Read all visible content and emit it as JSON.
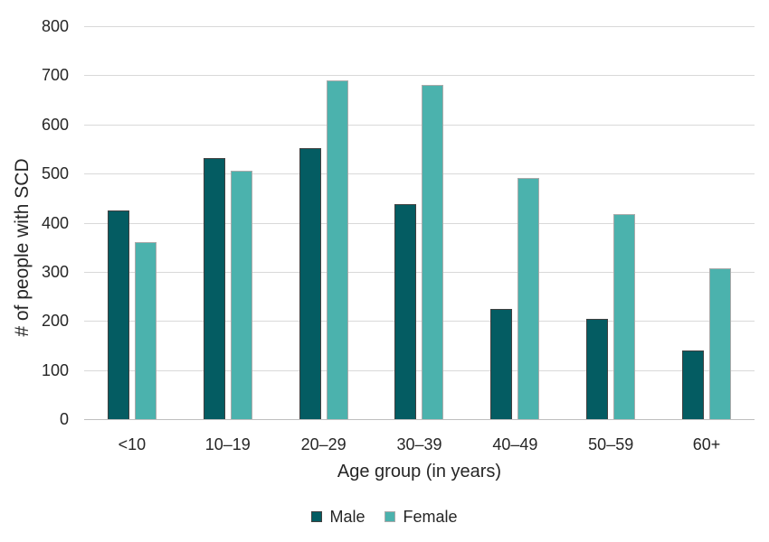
{
  "chart_data": {
    "type": "bar",
    "categories": [
      "<10",
      "10–19",
      "20–29",
      "30–39",
      "40–49",
      "50–59",
      "60+"
    ],
    "series": [
      {
        "name": "Male",
        "color": "#045c62",
        "border_color": "#404040",
        "values": [
          425,
          532,
          552,
          438,
          225,
          204,
          139
        ]
      },
      {
        "name": "Female",
        "color": "#4bb2ad",
        "border_color": "#aaaaaa",
        "values": [
          360,
          506,
          690,
          681,
          491,
          417,
          308
        ]
      }
    ],
    "xlabel": "Age group (in years)",
    "ylabel": "# of people with SCD",
    "ylim": [
      0,
      800
    ],
    "yticks": [
      0,
      100,
      200,
      300,
      400,
      500,
      600,
      700,
      800
    ],
    "grid": "horizontal",
    "gridline_color": "#d9d9d9",
    "axis_line_color": "#bfbfbf",
    "text_color": "#262626",
    "legend_position": "bottom"
  }
}
